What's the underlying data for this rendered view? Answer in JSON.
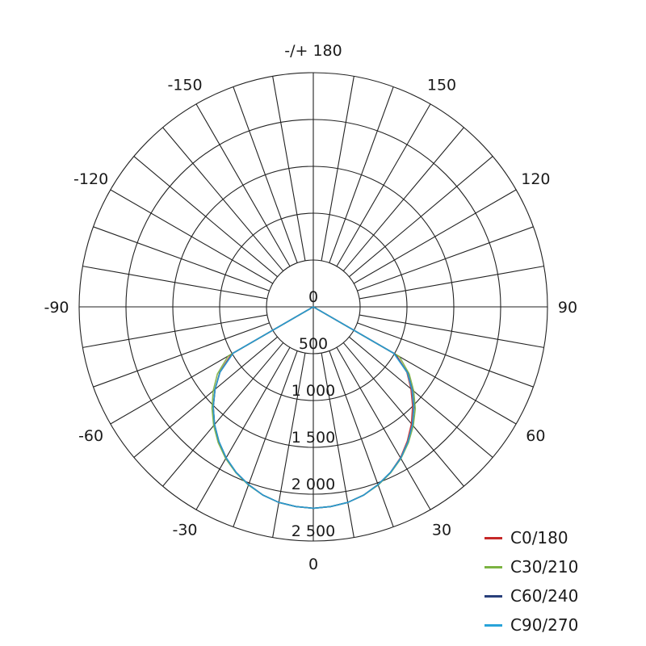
{
  "chart_data": {
    "type": "polar",
    "angle_labels": [
      "0",
      "30",
      "60",
      "90",
      "120",
      "150",
      "-/+ 180",
      "-150",
      "-120",
      "-90",
      "-60",
      "-30"
    ],
    "angle_values": [
      0,
      30,
      60,
      90,
      120,
      150,
      180,
      -150,
      -120,
      -90,
      -60,
      -30
    ],
    "radial_ticks": [
      0,
      500,
      1000,
      1500,
      2000,
      2500
    ],
    "radial_tick_labels": [
      "0",
      "500",
      "1 000",
      "1 500",
      "2 000",
      "2 500"
    ],
    "rlim": [
      0,
      2500
    ],
    "angular_grid_step_deg": 10,
    "grid": true,
    "legend_position": "bottom-right",
    "gamma": [
      0,
      5,
      10,
      15,
      20,
      25,
      30,
      35,
      40,
      45,
      50,
      55,
      60,
      65,
      70,
      75,
      80,
      85,
      90
    ],
    "series": [
      {
        "name": "C0/180",
        "color": "#c62828",
        "right": [
          2150,
          2140,
          2120,
          2080,
          2020,
          1950,
          1860,
          1750,
          1630,
          1500,
          1360,
          1220,
          1020,
          0,
          0,
          0,
          0,
          0,
          0
        ],
        "left": [
          2150,
          2140,
          2120,
          2080,
          2020,
          1950,
          1865,
          1760,
          1640,
          1510,
          1370,
          1220,
          1010,
          0,
          0,
          0,
          0,
          0,
          0
        ]
      },
      {
        "name": "C30/210",
        "color": "#7cb342",
        "right": [
          2150,
          2140,
          2120,
          2080,
          2025,
          1955,
          1870,
          1770,
          1660,
          1540,
          1400,
          1250,
          1060,
          0,
          0,
          0,
          0,
          0,
          0
        ],
        "left": [
          2150,
          2140,
          2120,
          2080,
          2025,
          1955,
          1870,
          1770,
          1655,
          1530,
          1395,
          1250,
          1050,
          0,
          0,
          0,
          0,
          0,
          0
        ]
      },
      {
        "name": "C60/240",
        "color": "#283f7a",
        "right": [
          2150,
          2140,
          2120,
          2080,
          2020,
          1950,
          1865,
          1760,
          1645,
          1520,
          1380,
          1230,
          1000,
          0,
          0,
          0,
          0,
          0,
          0
        ],
        "left": [
          2150,
          2140,
          2120,
          2080,
          2020,
          1950,
          1860,
          1755,
          1640,
          1510,
          1370,
          1215,
          990,
          0,
          0,
          0,
          0,
          0,
          0
        ]
      },
      {
        "name": "C90/270",
        "color": "#29a3d9",
        "right": [
          2150,
          2140,
          2120,
          2080,
          2020,
          1950,
          1865,
          1760,
          1645,
          1515,
          1375,
          1225,
          990,
          0,
          0,
          0,
          0,
          0,
          0
        ],
        "left": [
          2150,
          2140,
          2120,
          2080,
          2020,
          1950,
          1860,
          1755,
          1640,
          1510,
          1370,
          1215,
          985,
          0,
          0,
          0,
          0,
          0,
          0
        ]
      }
    ]
  }
}
